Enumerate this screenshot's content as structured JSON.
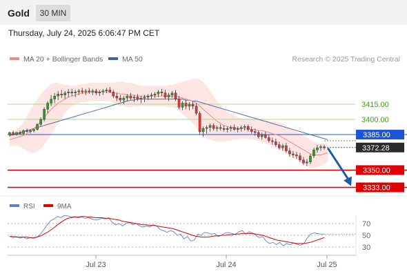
{
  "header": {
    "title": "Gold",
    "timeframe": "30 MIN"
  },
  "datetime": "Thursday, July 24, 2025 6:06:47 PM CET",
  "legend": {
    "ma20": {
      "label": "MA 20 + Bollinger Bands",
      "color": "#f28b82"
    },
    "ma50": {
      "label": "MA 50",
      "color": "#3c5fa8"
    }
  },
  "credit": "Research © 2025 Trading Central",
  "rsi_legend": {
    "rsi": {
      "label": "RSI",
      "color": "#5b7fd6"
    },
    "ma9": {
      "label": "9MA",
      "color": "#e00000"
    }
  },
  "chart_data": [
    {
      "type": "candlestick",
      "x_axis": {
        "ticks": [
          "Jul 23",
          "Jul 24",
          "Jul 25"
        ]
      },
      "y_axis_visible": false,
      "last_price": "3372.28",
      "levels": [
        {
          "value": "3415.00",
          "color": "#3f9b1e",
          "style": "thin-green"
        },
        {
          "value": "3400.00",
          "color": "#3f9b1e",
          "style": "thin-green"
        },
        {
          "value": "3385.00",
          "color": "#1a55d8",
          "style": "blue"
        },
        {
          "value": "3350.00",
          "color": "#e00000",
          "style": "red"
        },
        {
          "value": "3333.00",
          "color": "#e00000",
          "style": "red"
        }
      ],
      "forecast_arrow": {
        "from": 3372.28,
        "to": 3333,
        "color": "#1f5aa8"
      },
      "series": [
        {
          "name": "MA 20 + Bollinger Bands",
          "color": "#f28b82"
        },
        {
          "name": "MA 50",
          "color": "#3c5fa8"
        }
      ],
      "candles_ohlc": [
        [
          3385,
          3388,
          3383,
          3387
        ],
        [
          3387,
          3389,
          3384,
          3385
        ],
        [
          3385,
          3388,
          3384,
          3387
        ],
        [
          3387,
          3389,
          3385,
          3386
        ],
        [
          3386,
          3390,
          3385,
          3389
        ],
        [
          3389,
          3391,
          3387,
          3388
        ],
        [
          3388,
          3390,
          3386,
          3389
        ],
        [
          3389,
          3391,
          3387,
          3390
        ],
        [
          3390,
          3396,
          3389,
          3395
        ],
        [
          3395,
          3402,
          3393,
          3400
        ],
        [
          3400,
          3412,
          3398,
          3410
        ],
        [
          3410,
          3418,
          3406,
          3416
        ],
        [
          3416,
          3424,
          3413,
          3420
        ],
        [
          3420,
          3426,
          3416,
          3423
        ],
        [
          3423,
          3428,
          3419,
          3425
        ],
        [
          3425,
          3429,
          3421,
          3424
        ],
        [
          3424,
          3428,
          3420,
          3426
        ],
        [
          3426,
          3430,
          3422,
          3427
        ],
        [
          3427,
          3430,
          3423,
          3426
        ],
        [
          3426,
          3429,
          3422,
          3427
        ],
        [
          3427,
          3430,
          3424,
          3428
        ],
        [
          3428,
          3431,
          3425,
          3427
        ],
        [
          3427,
          3430,
          3424,
          3428
        ],
        [
          3428,
          3431,
          3425,
          3427
        ],
        [
          3427,
          3430,
          3424,
          3428
        ],
        [
          3428,
          3430,
          3424,
          3426
        ],
        [
          3426,
          3429,
          3423,
          3427
        ],
        [
          3427,
          3430,
          3424,
          3428
        ],
        [
          3428,
          3431,
          3426,
          3429
        ],
        [
          3429,
          3432,
          3426,
          3427
        ],
        [
          3427,
          3429,
          3421,
          3423
        ],
        [
          3423,
          3426,
          3418,
          3421
        ],
        [
          3421,
          3424,
          3417,
          3419
        ],
        [
          3419,
          3423,
          3415,
          3421
        ],
        [
          3421,
          3425,
          3418,
          3423
        ],
        [
          3423,
          3426,
          3419,
          3421
        ],
        [
          3421,
          3424,
          3417,
          3422
        ],
        [
          3422,
          3425,
          3418,
          3420
        ],
        [
          3420,
          3423,
          3416,
          3421
        ],
        [
          3421,
          3424,
          3417,
          3422
        ],
        [
          3422,
          3425,
          3419,
          3423
        ],
        [
          3423,
          3426,
          3420,
          3424
        ],
        [
          3424,
          3427,
          3421,
          3425
        ],
        [
          3425,
          3429,
          3422,
          3427
        ],
        [
          3427,
          3430,
          3423,
          3426
        ],
        [
          3426,
          3429,
          3420,
          3422
        ],
        [
          3422,
          3426,
          3418,
          3424
        ],
        [
          3424,
          3428,
          3421,
          3426
        ],
        [
          3426,
          3429,
          3418,
          3420
        ],
        [
          3420,
          3423,
          3410,
          3412
        ],
        [
          3412,
          3418,
          3409,
          3416
        ],
        [
          3416,
          3419,
          3410,
          3413
        ],
        [
          3413,
          3417,
          3409,
          3415
        ],
        [
          3415,
          3418,
          3410,
          3413
        ],
        [
          3413,
          3416,
          3404,
          3406
        ],
        [
          3406,
          3408,
          3385,
          3388
        ],
        [
          3388,
          3393,
          3383,
          3391
        ],
        [
          3391,
          3394,
          3386,
          3392
        ],
        [
          3392,
          3396,
          3388,
          3394
        ],
        [
          3394,
          3396,
          3389,
          3391
        ],
        [
          3391,
          3394,
          3388,
          3392
        ],
        [
          3392,
          3395,
          3389,
          3391
        ],
        [
          3391,
          3394,
          3388,
          3390
        ],
        [
          3390,
          3393,
          3387,
          3391
        ],
        [
          3391,
          3394,
          3388,
          3392
        ],
        [
          3392,
          3395,
          3389,
          3390
        ],
        [
          3390,
          3393,
          3387,
          3391
        ],
        [
          3391,
          3394,
          3388,
          3392
        ],
        [
          3392,
          3395,
          3389,
          3393
        ],
        [
          3393,
          3395,
          3388,
          3390
        ],
        [
          3390,
          3393,
          3386,
          3388
        ],
        [
          3388,
          3391,
          3384,
          3387
        ],
        [
          3387,
          3389,
          3381,
          3383
        ],
        [
          3383,
          3387,
          3380,
          3385
        ],
        [
          3385,
          3388,
          3381,
          3382
        ],
        [
          3382,
          3385,
          3377,
          3379
        ],
        [
          3379,
          3382,
          3375,
          3378
        ],
        [
          3378,
          3381,
          3373,
          3375
        ],
        [
          3375,
          3378,
          3370,
          3372
        ],
        [
          3372,
          3376,
          3369,
          3374
        ],
        [
          3374,
          3377,
          3367,
          3369
        ],
        [
          3369,
          3372,
          3363,
          3366
        ],
        [
          3366,
          3369,
          3362,
          3365
        ],
        [
          3365,
          3368,
          3361,
          3364
        ],
        [
          3364,
          3367,
          3358,
          3360
        ],
        [
          3360,
          3363,
          3355,
          3357
        ],
        [
          3357,
          3361,
          3354,
          3358
        ],
        [
          3358,
          3366,
          3356,
          3364
        ],
        [
          3364,
          3372,
          3362,
          3370
        ],
        [
          3370,
          3375,
          3367,
          3372
        ],
        [
          3372,
          3375,
          3369,
          3373
        ],
        [
          3373,
          3375,
          3370,
          3372
        ]
      ],
      "ma20": [
        3380,
        3381,
        3382,
        3383,
        3384,
        3386,
        3388,
        3391,
        3394,
        3398,
        3402,
        3406,
        3410,
        3413,
        3416,
        3418,
        3420,
        3422,
        3423,
        3424,
        3425,
        3426,
        3426,
        3427,
        3427,
        3427,
        3427,
        3427,
        3427,
        3427,
        3426,
        3426,
        3425,
        3425,
        3424,
        3424,
        3424,
        3423,
        3423,
        3423,
        3423,
        3423,
        3423,
        3423,
        3423,
        3423,
        3423,
        3423,
        3423,
        3422,
        3421,
        3420,
        3419,
        3418,
        3416,
        3413,
        3410,
        3407,
        3404,
        3401,
        3398,
        3396,
        3394,
        3393,
        3392,
        3392,
        3391,
        3391,
        3391,
        3391,
        3390,
        3390,
        3389,
        3389,
        3388,
        3387,
        3386,
        3385,
        3384,
        3382,
        3380,
        3378,
        3376,
        3374,
        3372,
        3370,
        3368,
        3366,
        3365,
        3365,
        3365,
        3366,
        3367
      ],
      "ma50": [
        3384,
        3385,
        3386,
        3387,
        3388,
        3389,
        3390,
        3391,
        3392,
        3393,
        3394,
        3395,
        3396,
        3397,
        3398,
        3399,
        3400,
        3401,
        3402,
        3403,
        3404,
        3405,
        3406,
        3407,
        3408,
        3409,
        3410,
        3411,
        3412,
        3413,
        3414,
        3415,
        3416,
        3417,
        3418,
        3419,
        3419,
        3420,
        3420,
        3420,
        3420,
        3420,
        3420,
        3420,
        3420,
        3420,
        3420,
        3420,
        3420,
        3420,
        3420,
        3419,
        3419,
        3418,
        3418,
        3417,
        3416,
        3415,
        3414,
        3413,
        3412,
        3411,
        3410,
        3409,
        3408,
        3407,
        3406,
        3405,
        3404,
        3403,
        3402,
        3401,
        3400,
        3399,
        3398,
        3397,
        3396,
        3395,
        3394,
        3393,
        3392,
        3391,
        3390,
        3389,
        3388,
        3387,
        3386,
        3385,
        3384,
        3383,
        3382,
        3381,
        3380
      ],
      "bb_width": [
        6,
        7,
        8,
        10,
        13,
        17,
        21,
        24,
        26,
        27,
        27,
        26,
        25,
        23,
        20,
        17,
        14,
        12,
        10,
        9,
        9,
        9,
        9,
        9,
        9,
        9,
        9,
        9,
        9,
        9,
        10,
        11,
        12,
        12,
        12,
        12,
        11,
        11,
        10,
        10,
        10,
        10,
        10,
        10,
        10,
        10,
        11,
        11,
        12,
        14,
        16,
        18,
        20,
        22,
        24,
        26,
        27,
        26,
        24,
        22,
        20,
        18,
        16,
        14,
        13,
        12,
        11,
        10,
        10,
        10,
        10,
        10,
        10,
        11,
        11,
        12,
        12,
        13,
        13,
        14,
        14,
        14,
        14,
        14,
        14,
        14,
        14,
        14,
        13,
        12,
        11,
        10,
        9
      ]
    },
    {
      "type": "line",
      "title": "RSI",
      "y_ticks": [
        "70",
        "50",
        "30"
      ],
      "series": [
        {
          "name": "RSI",
          "color": "#5b7fd6",
          "values": [
            48,
            46,
            48,
            45,
            47,
            44,
            46,
            45,
            47,
            52,
            60,
            68,
            75,
            78,
            82,
            80,
            84,
            83,
            81,
            82,
            80,
            81,
            79,
            80,
            78,
            76,
            77,
            79,
            78,
            80,
            72,
            68,
            70,
            66,
            70,
            72,
            68,
            70,
            66,
            64,
            66,
            64,
            68,
            66,
            60,
            58,
            55,
            58,
            56,
            50,
            52,
            44,
            48,
            40,
            42,
            52,
            50,
            55,
            54,
            52,
            53,
            48,
            50,
            54,
            55,
            53,
            51,
            56,
            58,
            52,
            56,
            54,
            50,
            46,
            48,
            40,
            36,
            38,
            34,
            38,
            32,
            36,
            34,
            37,
            35,
            33,
            36,
            45,
            52,
            54,
            53,
            52,
            52
          ]
        },
        {
          "name": "9MA",
          "color": "#e00000",
          "values": [
            48,
            48,
            47,
            47,
            47,
            47,
            46,
            46,
            47,
            49,
            52,
            55,
            59,
            63,
            68,
            72,
            76,
            79,
            80,
            81,
            81,
            82,
            82,
            81,
            81,
            80,
            80,
            80,
            79,
            79,
            78,
            77,
            76,
            74,
            73,
            72,
            71,
            70,
            69,
            68,
            68,
            67,
            67,
            66,
            65,
            64,
            63,
            62,
            61,
            59,
            57,
            55,
            53,
            51,
            49,
            48,
            47,
            47,
            47,
            48,
            49,
            49,
            50,
            50,
            51,
            51,
            52,
            52,
            53,
            53,
            53,
            53,
            52,
            51,
            50,
            48,
            46,
            44,
            42,
            41,
            40,
            39,
            38,
            37,
            36,
            36,
            36,
            37,
            38,
            40,
            42,
            44,
            46
          ]
        }
      ]
    }
  ]
}
